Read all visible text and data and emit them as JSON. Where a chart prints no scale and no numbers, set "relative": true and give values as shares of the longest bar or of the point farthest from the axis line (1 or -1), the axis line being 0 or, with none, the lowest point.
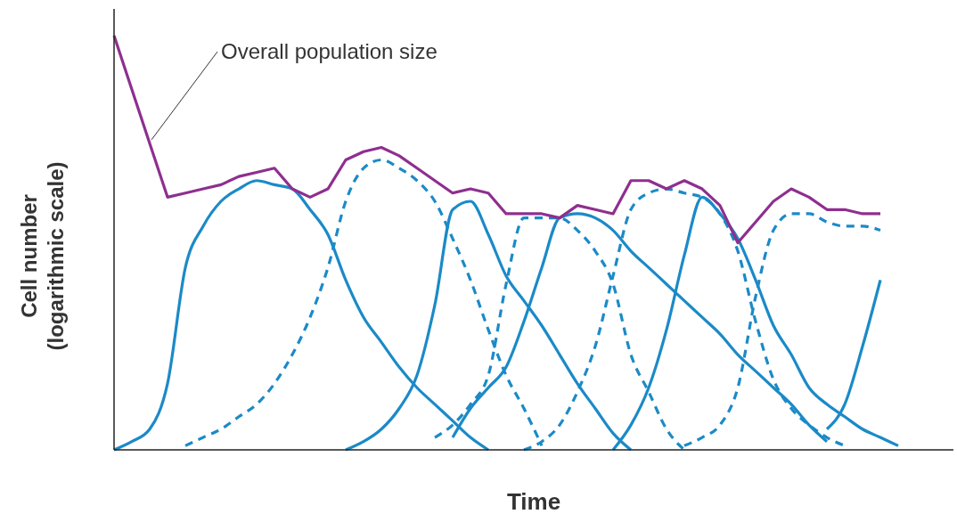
{
  "chart_data": {
    "type": "line",
    "relative": true,
    "xlabel": "Time",
    "ylabel": "Cell number\n(logarithmic scale)",
    "annotations": [
      "Overall population size"
    ],
    "categories": [
      null,
      null,
      null,
      null,
      null,
      null,
      null,
      null,
      null,
      null,
      null,
      null,
      null,
      null,
      null,
      null,
      null,
      null,
      null,
      null,
      null,
      null,
      null,
      null,
      null,
      null,
      null,
      null,
      null,
      null,
      null,
      null,
      null,
      null,
      null,
      null,
      null,
      null,
      null,
      null,
      null,
      null,
      null,
      null,
      null,
      null,
      null,
      null
    ],
    "series": [
      {
        "color": "#8e2f8f",
        "line_style": "solid",
        "values": [
          1.0,
          0.87,
          0.74,
          0.61,
          0.62,
          0.63,
          0.64,
          0.66,
          0.67,
          0.68,
          0.63,
          0.61,
          0.63,
          0.7,
          0.72,
          0.73,
          0.71,
          0.68,
          0.65,
          0.62,
          0.63,
          0.62,
          0.57,
          0.57,
          0.57,
          0.56,
          0.59,
          0.58,
          0.57,
          0.65,
          0.65,
          0.63,
          0.65,
          0.63,
          0.59,
          0.5,
          0.55,
          0.6,
          0.63,
          0.61,
          0.58,
          0.58,
          0.57,
          0.57,
          null,
          null,
          null,
          null
        ]
      },
      {
        "color": "#1b8ac7",
        "line_style": "solid",
        "values": [
          0,
          0.02,
          0.05,
          0.16,
          0.44,
          0.54,
          0.6,
          0.63,
          0.65,
          0.64,
          0.63,
          0.58,
          0.52,
          0.41,
          0.32,
          0.26,
          0.2,
          0.15,
          0.11,
          0.07,
          0.03,
          0,
          null,
          null,
          null,
          null,
          null,
          null,
          null,
          null,
          null,
          null,
          null,
          null,
          null,
          null,
          null,
          null,
          null,
          null,
          null,
          null,
          null,
          null,
          null,
          null,
          null,
          null
        ]
      },
      {
        "color": "#1b8ac7",
        "line_style": "dashed",
        "values": [
          null,
          null,
          null,
          null,
          0.01,
          0.03,
          0.05,
          0.08,
          0.11,
          0.16,
          0.23,
          0.32,
          0.44,
          0.6,
          0.68,
          0.7,
          0.68,
          0.65,
          0.6,
          0.51,
          0.41,
          0.29,
          0.18,
          0.1,
          0.01,
          null,
          null,
          null,
          null,
          null,
          null,
          null,
          null,
          null,
          null,
          null,
          null,
          null,
          null,
          null,
          null,
          null,
          null,
          null,
          null,
          null,
          null,
          null
        ]
      },
      {
        "color": "#1b8ac7",
        "line_style": "solid",
        "values": [
          null,
          null,
          null,
          null,
          null,
          null,
          null,
          null,
          null,
          null,
          null,
          null,
          null,
          0,
          0.02,
          0.05,
          0.1,
          0.18,
          0.35,
          0.58,
          0.6,
          0.52,
          0.42,
          0.36,
          0.3,
          0.23,
          0.16,
          0.1,
          0.04,
          0,
          null,
          null,
          null,
          null,
          null,
          null,
          null,
          null,
          null,
          null,
          null,
          null,
          null,
          null,
          null,
          null,
          null,
          null
        ]
      },
      {
        "color": "#1b8ac7",
        "line_style": "dashed",
        "values": [
          null,
          null,
          null,
          null,
          null,
          null,
          null,
          null,
          null,
          null,
          null,
          null,
          null,
          null,
          null,
          null,
          null,
          null,
          0.03,
          0.06,
          0.11,
          0.18,
          0.4,
          0.56,
          0.56,
          0.56,
          0.53,
          0.48,
          0.4,
          0.23,
          0.14,
          0.05,
          0,
          null,
          null,
          null,
          null,
          null,
          null,
          null,
          null,
          null,
          null,
          null,
          null,
          null,
          null,
          null
        ]
      },
      {
        "color": "#1b8ac7",
        "line_style": "solid",
        "values": [
          null,
          null,
          null,
          null,
          null,
          null,
          null,
          null,
          null,
          null,
          null,
          null,
          null,
          null,
          null,
          null,
          null,
          null,
          null,
          0.03,
          0.1,
          0.15,
          0.2,
          0.31,
          0.44,
          0.56,
          0.57,
          0.56,
          0.53,
          0.48,
          0.44,
          0.4,
          0.36,
          0.32,
          0.28,
          0.23,
          0.19,
          0.15,
          0.11,
          0.06,
          0.02,
          null,
          null,
          null,
          null,
          null,
          null,
          null
        ]
      },
      {
        "color": "#1b8ac7",
        "line_style": "dashed",
        "values": [
          null,
          null,
          null,
          null,
          null,
          null,
          null,
          null,
          null,
          null,
          null,
          null,
          null,
          null,
          null,
          null,
          null,
          null,
          null,
          null,
          null,
          null,
          null,
          0,
          0.02,
          0.06,
          0.14,
          0.25,
          0.42,
          0.58,
          0.62,
          0.63,
          0.62,
          0.61,
          0.57,
          0.48,
          0.31,
          0.17,
          0.1,
          0.06,
          0.03,
          0.01,
          null,
          null,
          null,
          null,
          null,
          null
        ]
      },
      {
        "color": "#1b8ac7",
        "line_style": "solid",
        "values": [
          null,
          null,
          null,
          null,
          null,
          null,
          null,
          null,
          null,
          null,
          null,
          null,
          null,
          null,
          null,
          null,
          null,
          null,
          null,
          null,
          null,
          null,
          null,
          null,
          null,
          null,
          null,
          null,
          0,
          0.06,
          0.15,
          0.29,
          0.47,
          0.61,
          0.57,
          0.51,
          0.41,
          0.3,
          0.23,
          0.15,
          0.11,
          0.08,
          0.05,
          0.03,
          0.01,
          null,
          null,
          null
        ]
      },
      {
        "color": "#1b8ac7",
        "line_style": "dashed",
        "values": [
          null,
          null,
          null,
          null,
          null,
          null,
          null,
          null,
          null,
          null,
          null,
          null,
          null,
          null,
          null,
          null,
          null,
          null,
          null,
          null,
          null,
          null,
          null,
          null,
          null,
          null,
          null,
          null,
          null,
          null,
          null,
          null,
          0.01,
          0.03,
          0.06,
          0.15,
          0.37,
          0.53,
          0.57,
          0.57,
          0.55,
          0.54,
          0.54,
          0.53,
          null,
          null,
          null,
          null
        ]
      },
      {
        "color": "#1b8ac7",
        "line_style": "solid",
        "values": [
          null,
          null,
          null,
          null,
          null,
          null,
          null,
          null,
          null,
          null,
          null,
          null,
          null,
          null,
          null,
          null,
          null,
          null,
          null,
          null,
          null,
          null,
          null,
          null,
          null,
          null,
          null,
          null,
          null,
          null,
          null,
          null,
          null,
          null,
          null,
          null,
          null,
          null,
          null,
          null,
          0.05,
          0.11,
          0.25,
          0.41,
          null,
          null,
          null,
          null
        ]
      }
    ]
  }
}
